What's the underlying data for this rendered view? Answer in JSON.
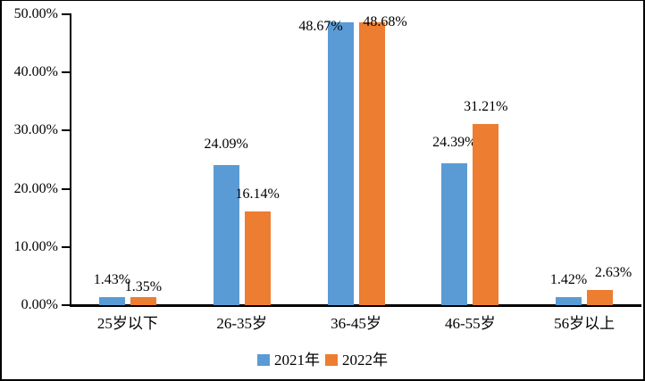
{
  "chart_data": {
    "type": "bar",
    "title": "",
    "xlabel": "",
    "ylabel": "",
    "categories": [
      "25岁以下",
      "26-35岁",
      "36-45岁",
      "46-55岁",
      "56岁以上"
    ],
    "series": [
      {
        "name": "2021年",
        "color": "#5B9BD5",
        "values": [
          1.43,
          24.09,
          48.67,
          24.39,
          1.42
        ],
        "labels": [
          "1.43%",
          "24.09%",
          "48.67%",
          "24.39%",
          "1.42%"
        ]
      },
      {
        "name": "2022年",
        "color": "#ED7D31",
        "values": [
          1.35,
          16.14,
          48.68,
          31.21,
          2.63
        ],
        "labels": [
          "1.35%",
          "16.14%",
          "48.68%",
          "31.21%",
          "2.63%"
        ]
      }
    ],
    "y_axis": {
      "min": 0,
      "max": 50,
      "step": 10,
      "tick_labels": [
        "0.00%",
        "10.00%",
        "20.00%",
        "30.00%",
        "40.00%",
        "50.00%"
      ]
    },
    "legend": {
      "position": "bottom",
      "entries": [
        "2021年",
        "2022年"
      ]
    },
    "grid": false,
    "axis_color": "#000000",
    "text_color": "#000000",
    "layout_hints": {
      "label_dx": [
        [
          0,
          0,
          -22,
          0,
          0
        ],
        [
          0,
          0,
          15,
          0,
          15
        ]
      ],
      "label_dy": [
        [
          0,
          -4,
          24,
          -4,
          0
        ],
        [
          8,
          0,
          19,
          0,
          0
        ]
      ]
    }
  }
}
